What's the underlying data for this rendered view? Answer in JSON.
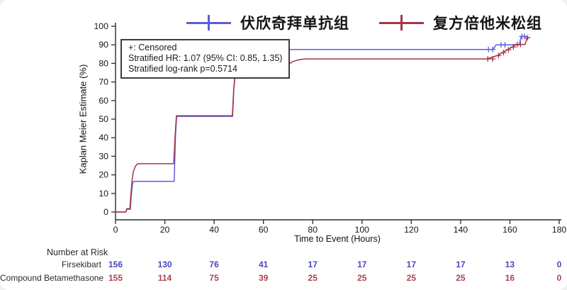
{
  "page": {
    "background": "#eef0f2",
    "card_background": "#ffffff"
  },
  "legend": {
    "items": [
      {
        "label": "伏欣奇拜单抗组",
        "color": "#5d5dda",
        "symbol": "plus-line"
      },
      {
        "label": "复方倍他米松组",
        "color": "#a43549",
        "symbol": "plus-line"
      }
    ]
  },
  "annotation_box": {
    "line1": "+: Censored",
    "line2": "Stratified HR: 1.07 (95% CI: 0.85, 1.35)",
    "line3": "Stratified log-rank p=0.5714"
  },
  "chart_data": {
    "type": "line",
    "subtype": "kaplan-meier-step",
    "title": "",
    "xlabel": "Time to Event (Hours)",
    "ylabel": "Kaplan Meier Estimate (%)",
    "xlim": [
      0,
      180
    ],
    "ylim": [
      0,
      100
    ],
    "x_ticks": [
      0,
      20,
      40,
      60,
      80,
      100,
      120,
      140,
      160,
      180
    ],
    "y_ticks": [
      0,
      10,
      20,
      30,
      40,
      50,
      60,
      70,
      80,
      90,
      100
    ],
    "grid": false,
    "legend_position": "top",
    "series": [
      {
        "name": "伏欣奇拜单抗组 (Firsekibart)",
        "color": "#5d5dda",
        "step_points": [
          [
            0,
            0
          ],
          [
            4.2,
            0
          ],
          [
            4.6,
            1.5
          ],
          [
            6.0,
            1.5
          ],
          [
            6.4,
            9
          ],
          [
            6.9,
            15.5
          ],
          [
            7.4,
            16.5
          ],
          [
            23.8,
            16.5
          ],
          [
            24.3,
            40
          ],
          [
            24.8,
            51.5
          ],
          [
            47.5,
            51.5
          ],
          [
            48.0,
            66
          ],
          [
            48.5,
            73
          ],
          [
            68.5,
            73
          ],
          [
            69.2,
            79.5
          ],
          [
            69.9,
            86
          ],
          [
            70.5,
            87.5
          ],
          [
            153.2,
            87.5
          ],
          [
            154.4,
            90
          ],
          [
            163.8,
            90
          ],
          [
            164.6,
            94.5
          ],
          [
            166.5,
            94.5
          ]
        ],
        "censored": [
          [
            151.3,
            87.5
          ],
          [
            153.0,
            87.5
          ],
          [
            156.4,
            90
          ],
          [
            158.0,
            90
          ],
          [
            164.9,
            94.5
          ],
          [
            165.9,
            94.5
          ]
        ]
      },
      {
        "name": "复方倍他米松组 (Compound Betamethasone)",
        "color": "#a43549",
        "step_points": [
          [
            0,
            0
          ],
          [
            4.2,
            0
          ],
          [
            4.6,
            1.8
          ],
          [
            5.8,
            1.8
          ],
          [
            6.2,
            9
          ],
          [
            6.7,
            17
          ],
          [
            7.2,
            21.5
          ],
          [
            8.0,
            24.5
          ],
          [
            9.0,
            26
          ],
          [
            23.6,
            26
          ],
          [
            24.2,
            42
          ],
          [
            24.7,
            51.8
          ],
          [
            47.4,
            51.8
          ],
          [
            47.9,
            65
          ],
          [
            48.4,
            73.3
          ],
          [
            68.7,
            73.3
          ],
          [
            69.5,
            77.5
          ],
          [
            70.3,
            79.5
          ],
          [
            71.6,
            80.8
          ],
          [
            73.6,
            81.7
          ],
          [
            76.6,
            82.4
          ],
          [
            150.6,
            82.4
          ],
          [
            154.9,
            84.2
          ],
          [
            156.9,
            85.8
          ],
          [
            158.9,
            87.3
          ],
          [
            160.9,
            88.8
          ],
          [
            162.4,
            90.2
          ],
          [
            166.2,
            90.2
          ],
          [
            166.9,
            93.8
          ],
          [
            167.8,
            93.8
          ]
        ],
        "censored": [
          [
            49.8,
            73.6
          ],
          [
            151.0,
            82.4
          ],
          [
            153.0,
            82.4
          ],
          [
            155.4,
            84.2
          ],
          [
            157.4,
            85.8
          ],
          [
            159.4,
            87.3
          ],
          [
            161.4,
            88.8
          ],
          [
            163.0,
            90.2
          ],
          [
            164.3,
            90.2
          ],
          [
            167.2,
            93.8
          ]
        ]
      }
    ],
    "risk_table": {
      "title": "Number at Risk",
      "times": [
        0,
        20,
        40,
        60,
        80,
        100,
        120,
        140,
        160,
        180
      ],
      "rows": [
        {
          "label": "Firsekibart",
          "color": "#4747c0",
          "counts": [
            156,
            130,
            76,
            41,
            17,
            17,
            17,
            17,
            13,
            0
          ]
        },
        {
          "label": "Compound Betamethasone",
          "color": "#a84352",
          "counts": [
            155,
            114,
            75,
            39,
            25,
            25,
            25,
            25,
            16,
            0
          ]
        }
      ]
    }
  }
}
